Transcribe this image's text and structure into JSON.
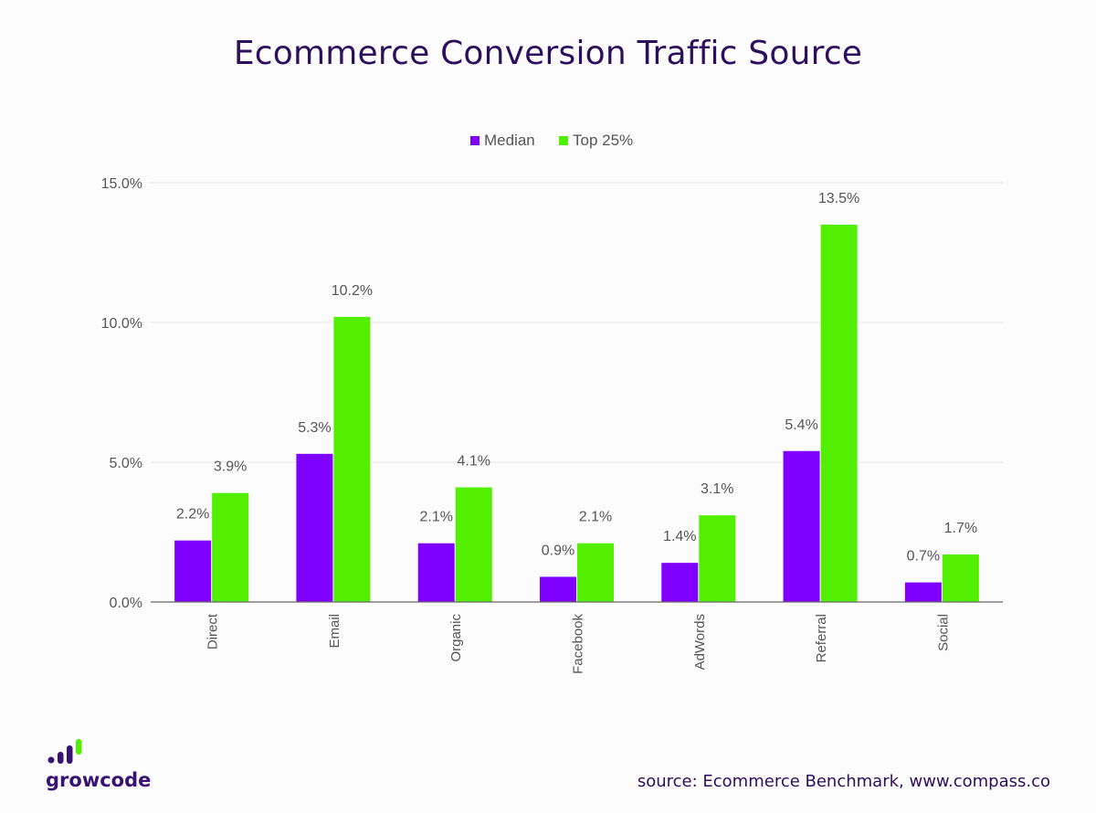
{
  "page": {
    "title": "Ecommerce Conversion Traffic Source",
    "source": "source: Ecommerce Benchmark, www.compass.co",
    "logo_text": "growcode"
  },
  "colors": {
    "median": "#7f00ff",
    "top25": "#52f000",
    "title": "#2e0f5e"
  },
  "chart_data": {
    "type": "bar",
    "title": "Ecommerce Conversion Traffic Source",
    "categories": [
      "Direct",
      "Email",
      "Organic",
      "Facebook",
      "AdWords",
      "Referral",
      "Social"
    ],
    "series": [
      {
        "name": "Median",
        "values": [
          2.2,
          5.3,
          2.1,
          0.9,
          1.4,
          5.4,
          0.7
        ],
        "labels": [
          "2.2%",
          "5.3%",
          "2.1%",
          "0.9%",
          "1.4%",
          "5.4%",
          "0.7%"
        ]
      },
      {
        "name": "Top 25%",
        "values": [
          3.9,
          10.2,
          4.1,
          2.1,
          3.1,
          13.5,
          1.7
        ],
        "labels": [
          "3.9%",
          "10.2%",
          "4.1%",
          "2.1%",
          "3.1%",
          "13.5%",
          "1.7%"
        ]
      }
    ],
    "ylim": [
      0,
      15
    ],
    "yticks": [
      0,
      5,
      10,
      15
    ],
    "ytick_labels": [
      "0.0%",
      "5.0%",
      "10.0%",
      "15.0%"
    ],
    "grid": true,
    "legend": "top"
  }
}
